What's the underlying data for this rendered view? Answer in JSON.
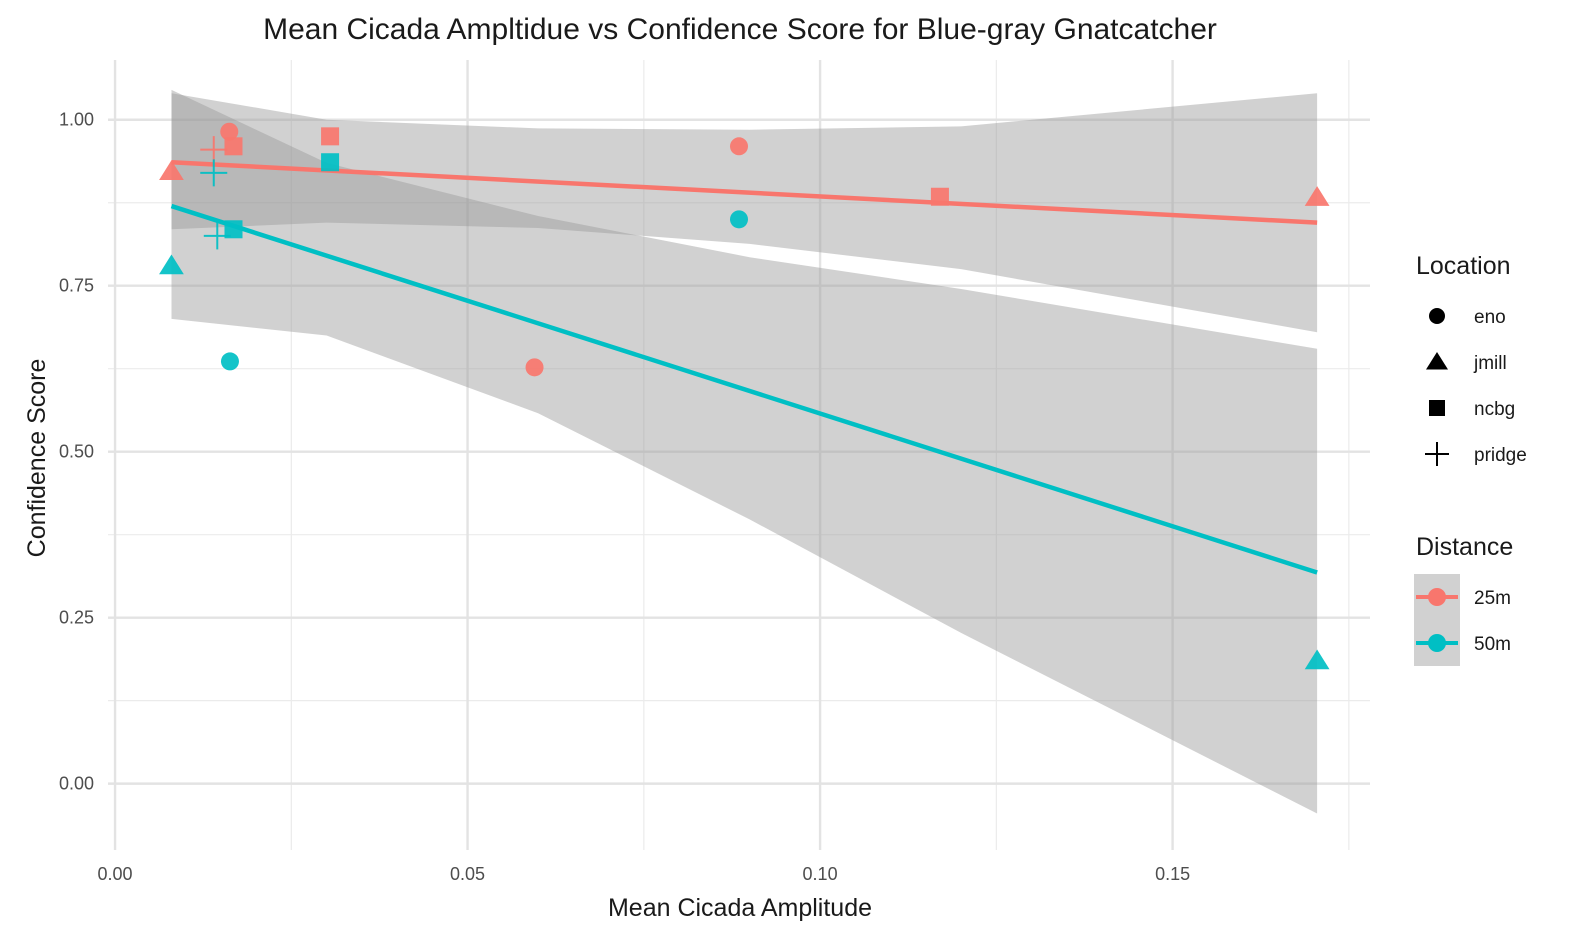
{
  "chart_data": {
    "type": "scatter",
    "title": "Mean Cicada Ampltidue vs Confidence Score for Blue-gray Gnatcatcher",
    "xlabel": "Mean Cicada Amplitude",
    "ylabel": "Confidence Score",
    "xlim": [
      -0.001,
      0.178
    ],
    "ylim": [
      -0.1,
      1.09
    ],
    "x_ticks": [
      0.0,
      0.05,
      0.1,
      0.15
    ],
    "x_tick_labels": [
      "0.00",
      "0.05",
      "0.10",
      "0.15"
    ],
    "y_ticks": [
      0.0,
      0.25,
      0.5,
      0.75,
      1.0
    ],
    "y_tick_labels": [
      "0.00",
      "0.25",
      "0.50",
      "0.75",
      "1.00"
    ],
    "grid": true,
    "legend_placement": "right",
    "colors": {
      "25m": "#F8766D",
      "50m": "#00BFC4",
      "band": "#999999"
    },
    "shape_legend": {
      "title": "Location",
      "items": [
        {
          "label": "eno",
          "shape": "circle"
        },
        {
          "label": "jmill",
          "shape": "triangle"
        },
        {
          "label": "ncbg",
          "shape": "square"
        },
        {
          "label": "pridge",
          "shape": "plus"
        }
      ]
    },
    "color_legend": {
      "title": "Distance",
      "items": [
        {
          "label": "25m",
          "key": "25m"
        },
        {
          "label": "50m",
          "key": "50m"
        }
      ]
    },
    "series": [
      {
        "name": "25m",
        "points": [
          {
            "x": 0.008,
            "y": 0.922,
            "location": "jmill"
          },
          {
            "x": 0.014,
            "y": 0.955,
            "location": "pridge"
          },
          {
            "x": 0.0162,
            "y": 0.982,
            "location": "eno"
          },
          {
            "x": 0.0168,
            "y": 0.96,
            "location": "ncbg"
          },
          {
            "x": 0.0305,
            "y": 0.975,
            "location": "ncbg"
          },
          {
            "x": 0.0595,
            "y": 0.627,
            "location": "eno"
          },
          {
            "x": 0.0885,
            "y": 0.96,
            "location": "eno"
          },
          {
            "x": 0.117,
            "y": 0.884,
            "location": "ncbg"
          },
          {
            "x": 0.1705,
            "y": 0.883,
            "location": "jmill"
          }
        ],
        "fit": {
          "x0": 0.008,
          "y0": 0.936,
          "x1": 0.1705,
          "y1": 0.845
        },
        "band": {
          "x": [
            0.008,
            0.03,
            0.06,
            0.09,
            0.12,
            0.1705
          ],
          "lower": [
            0.835,
            0.845,
            0.837,
            0.813,
            0.775,
            0.68
          ],
          "upper": [
            1.04,
            1.0,
            0.987,
            0.985,
            0.99,
            1.04
          ]
        }
      },
      {
        "name": "50m",
        "points": [
          {
            "x": 0.008,
            "y": 0.78,
            "location": "jmill"
          },
          {
            "x": 0.014,
            "y": 0.92,
            "location": "pridge"
          },
          {
            "x": 0.0145,
            "y": 0.825,
            "location": "pridge"
          },
          {
            "x": 0.0163,
            "y": 0.636,
            "location": "eno"
          },
          {
            "x": 0.0168,
            "y": 0.835,
            "location": "ncbg"
          },
          {
            "x": 0.0305,
            "y": 0.936,
            "location": "ncbg"
          },
          {
            "x": 0.0885,
            "y": 0.85,
            "location": "eno"
          },
          {
            "x": 0.1705,
            "y": 0.185,
            "location": "jmill"
          }
        ],
        "fit": {
          "x0": 0.008,
          "y0": 0.87,
          "x1": 0.1705,
          "y1": 0.318
        },
        "band": {
          "x": [
            0.008,
            0.03,
            0.06,
            0.09,
            0.12,
            0.1705
          ],
          "lower": [
            0.7,
            0.675,
            0.558,
            0.398,
            0.227,
            -0.045
          ],
          "upper": [
            1.045,
            0.935,
            0.855,
            0.793,
            0.745,
            0.655
          ]
        }
      }
    ]
  }
}
